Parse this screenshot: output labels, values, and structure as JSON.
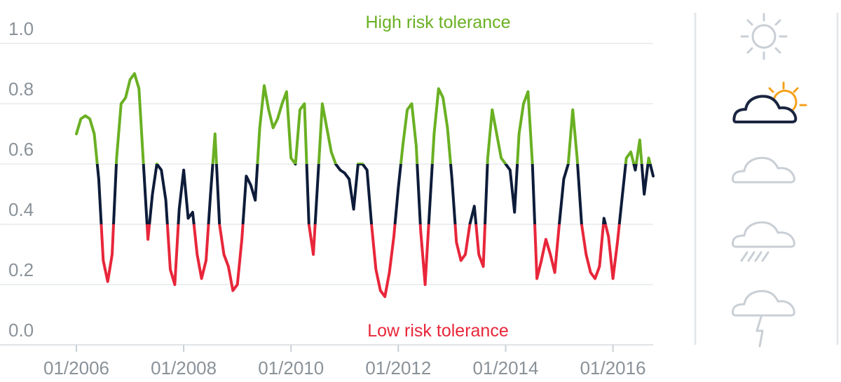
{
  "chart_data": {
    "type": "line",
    "x_axis": {
      "type": "date",
      "range": [
        "2006-01",
        "2016-10"
      ],
      "tick_labels": [
        "01/2006",
        "01/2008",
        "01/2010",
        "01/2012",
        "01/2014",
        "01/2016"
      ],
      "tick_values": [
        "2006-01",
        "2008-01",
        "2010-01",
        "2012-01",
        "2014-01",
        "2016-01"
      ]
    },
    "y_axis": {
      "range": [
        0,
        1
      ],
      "tick_labels": [
        "1.0",
        "0.8",
        "0.6",
        "0.4",
        "0.2",
        "0.0"
      ],
      "tick_values": [
        1.0,
        0.8,
        0.6,
        0.4,
        0.2,
        0.0
      ],
      "grid": true
    },
    "bands": [
      {
        "name": "high",
        "from": 0.6,
        "to": 1.0,
        "color": "#6ab023"
      },
      {
        "name": "neutral",
        "from": 0.4,
        "to": 0.6,
        "color": "#0e1c3a"
      },
      {
        "name": "low",
        "from": 0.0,
        "to": 0.4,
        "color": "#e8263a"
      }
    ],
    "annotations": {
      "high": "High risk tolerance",
      "low": "Low risk tolerance"
    },
    "series": [
      {
        "x": [
          "2006-01",
          "2006-02",
          "2006-03",
          "2006-04",
          "2006-05",
          "2006-06",
          "2006-07",
          "2006-08",
          "2006-09",
          "2006-10",
          "2006-11",
          "2006-12",
          "2007-01",
          "2007-02",
          "2007-03",
          "2007-04",
          "2007-05",
          "2007-06",
          "2007-07",
          "2007-08",
          "2007-09",
          "2007-10",
          "2007-11",
          "2007-12",
          "2008-01",
          "2008-02",
          "2008-03",
          "2008-04",
          "2008-05",
          "2008-06",
          "2008-07",
          "2008-08",
          "2008-09",
          "2008-10",
          "2008-11",
          "2008-12",
          "2009-01",
          "2009-02",
          "2009-03",
          "2009-04",
          "2009-05",
          "2009-06",
          "2009-07",
          "2009-08",
          "2009-09",
          "2009-10",
          "2009-11",
          "2009-12",
          "2010-01",
          "2010-02",
          "2010-03",
          "2010-04",
          "2010-05",
          "2010-06",
          "2010-07",
          "2010-08",
          "2010-09",
          "2010-10",
          "2010-11",
          "2010-12",
          "2011-01",
          "2011-02",
          "2011-03",
          "2011-04",
          "2011-05",
          "2011-06",
          "2011-07",
          "2011-08",
          "2011-09",
          "2011-10",
          "2011-11",
          "2011-12",
          "2012-01",
          "2012-02",
          "2012-03",
          "2012-04",
          "2012-05",
          "2012-06",
          "2012-07",
          "2012-08",
          "2012-09",
          "2012-10",
          "2012-11",
          "2012-12",
          "2013-01",
          "2013-02",
          "2013-03",
          "2013-04",
          "2013-05",
          "2013-06",
          "2013-07",
          "2013-08",
          "2013-09",
          "2013-10",
          "2013-11",
          "2013-12",
          "2014-01",
          "2014-02",
          "2014-03",
          "2014-04",
          "2014-05",
          "2014-06",
          "2014-07",
          "2014-08",
          "2014-09",
          "2014-10",
          "2014-11",
          "2014-12",
          "2015-01",
          "2015-02",
          "2015-03",
          "2015-04",
          "2015-05",
          "2015-06",
          "2015-07",
          "2015-08",
          "2015-09",
          "2015-10",
          "2015-11",
          "2015-12",
          "2016-01",
          "2016-02",
          "2016-03",
          "2016-04",
          "2016-05",
          "2016-06",
          "2016-07",
          "2016-08",
          "2016-09",
          "2016-10"
        ],
        "values": [
          0.7,
          0.75,
          0.76,
          0.75,
          0.7,
          0.55,
          0.28,
          0.21,
          0.3,
          0.62,
          0.8,
          0.82,
          0.88,
          0.9,
          0.85,
          0.6,
          0.35,
          0.5,
          0.6,
          0.58,
          0.48,
          0.25,
          0.2,
          0.45,
          0.58,
          0.42,
          0.44,
          0.3,
          0.22,
          0.28,
          0.5,
          0.7,
          0.4,
          0.3,
          0.26,
          0.18,
          0.2,
          0.35,
          0.56,
          0.53,
          0.48,
          0.72,
          0.86,
          0.78,
          0.72,
          0.75,
          0.8,
          0.84,
          0.62,
          0.6,
          0.78,
          0.8,
          0.4,
          0.3,
          0.55,
          0.8,
          0.72,
          0.64,
          0.6,
          0.58,
          0.57,
          0.55,
          0.45,
          0.6,
          0.6,
          0.58,
          0.4,
          0.25,
          0.18,
          0.16,
          0.24,
          0.36,
          0.52,
          0.66,
          0.78,
          0.8,
          0.66,
          0.38,
          0.2,
          0.45,
          0.7,
          0.85,
          0.82,
          0.72,
          0.55,
          0.34,
          0.28,
          0.3,
          0.4,
          0.46,
          0.3,
          0.26,
          0.62,
          0.78,
          0.7,
          0.62,
          0.6,
          0.58,
          0.44,
          0.7,
          0.8,
          0.84,
          0.6,
          0.22,
          0.28,
          0.35,
          0.3,
          0.24,
          0.4,
          0.55,
          0.6,
          0.78,
          0.62,
          0.4,
          0.3,
          0.24,
          0.22,
          0.26,
          0.42,
          0.36,
          0.22,
          0.34,
          0.48,
          0.62,
          0.64,
          0.58,
          0.68,
          0.5,
          0.62,
          0.56
        ]
      }
    ]
  },
  "sidebar": {
    "icons": [
      "sun-icon",
      "cloud-sun-icon",
      "cloud-icon",
      "cloud-rain-icon",
      "cloud-lightning-icon"
    ],
    "active_color": "#1a2540",
    "accent_color": "#f5a11c",
    "inactive_color": "#c9cfd5"
  }
}
